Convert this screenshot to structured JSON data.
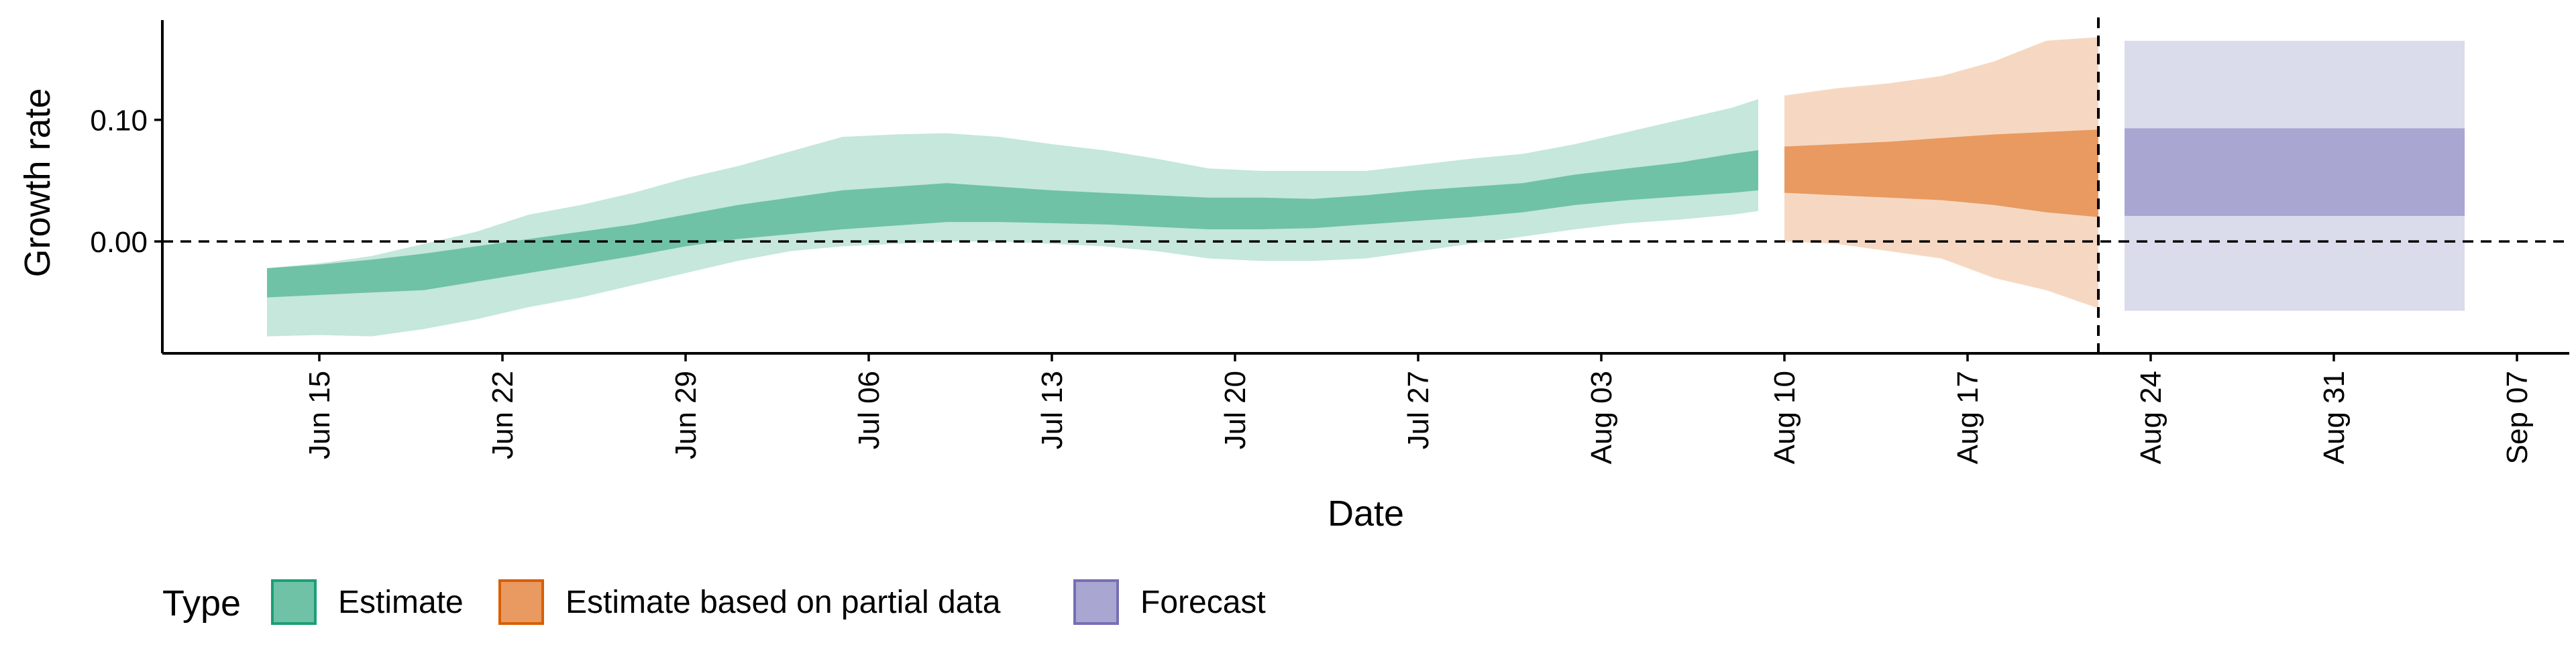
{
  "chart_data": {
    "type": "area",
    "xlabel": "Date",
    "ylabel": "Growth rate",
    "x_ticks": [
      "2020-06-15",
      "2020-06-22",
      "2020-06-29",
      "2020-07-06",
      "2020-07-13",
      "2020-07-20",
      "2020-07-27",
      "2020-08-03",
      "2020-08-10",
      "2020-08-17",
      "2020-08-24",
      "2020-08-31",
      "2020-09-07"
    ],
    "x_tick_labels": [
      "Jun 15",
      "Jun 22",
      "Jun 29",
      "Jul 06",
      "Jul 13",
      "Jul 20",
      "Jul 27",
      "Aug 03",
      "Aug 10",
      "Aug 17",
      "Aug 24",
      "Aug 31",
      "Sep 07"
    ],
    "y_ticks": [
      0.0,
      0.1
    ],
    "y_tick_labels": [
      "0.00",
      "0.10"
    ],
    "xlim": [
      "2020-06-09",
      "2020-09-09"
    ],
    "ylim": [
      -0.092,
      0.182
    ],
    "reference_lines": {
      "horizontal_y": 0.0,
      "vertical_x": "2020-08-22"
    },
    "legend": {
      "title": "Type",
      "position": "bottom",
      "items": [
        {
          "label": "Estimate",
          "fill": "#6fc2a5",
          "stroke": "#1b9e77"
        },
        {
          "label": "Estimate based on partial data",
          "fill": "#e89a60",
          "stroke": "#d95f02"
        },
        {
          "label": "Forecast",
          "fill": "#a9a6d2",
          "stroke": "#7570b3"
        }
      ]
    },
    "series": [
      {
        "name": "Estimate",
        "colors": {
          "outer": "#c5e7dc",
          "inner": "#6fc2a5"
        },
        "points": [
          {
            "x": "2020-06-13",
            "lo90": -0.078,
            "lo50": -0.046,
            "hi50": -0.022,
            "hi90": -0.022
          },
          {
            "x": "2020-06-15",
            "lo90": -0.077,
            "lo50": -0.044,
            "hi50": -0.019,
            "hi90": -0.018
          },
          {
            "x": "2020-06-17",
            "lo90": -0.078,
            "lo50": -0.042,
            "hi50": -0.015,
            "hi90": -0.012
          },
          {
            "x": "2020-06-19",
            "lo90": -0.072,
            "lo50": -0.04,
            "hi50": -0.01,
            "hi90": -0.002
          },
          {
            "x": "2020-06-21",
            "lo90": -0.064,
            "lo50": -0.033,
            "hi50": -0.004,
            "hi90": 0.008
          },
          {
            "x": "2020-06-23",
            "lo90": -0.054,
            "lo50": -0.026,
            "hi50": 0.002,
            "hi90": 0.022
          },
          {
            "x": "2020-06-25",
            "lo90": -0.046,
            "lo50": -0.019,
            "hi50": 0.008,
            "hi90": 0.03
          },
          {
            "x": "2020-06-27",
            "lo90": -0.036,
            "lo50": -0.012,
            "hi50": 0.014,
            "hi90": 0.04
          },
          {
            "x": "2020-06-29",
            "lo90": -0.026,
            "lo50": -0.004,
            "hi50": 0.022,
            "hi90": 0.052
          },
          {
            "x": "2020-07-01",
            "lo90": -0.016,
            "lo50": 0.002,
            "hi50": 0.03,
            "hi90": 0.062
          },
          {
            "x": "2020-07-03",
            "lo90": -0.008,
            "lo50": 0.006,
            "hi50": 0.036,
            "hi90": 0.074
          },
          {
            "x": "2020-07-05",
            "lo90": -0.004,
            "lo50": 0.01,
            "hi50": 0.042,
            "hi90": 0.086
          },
          {
            "x": "2020-07-07",
            "lo90": -0.002,
            "lo50": 0.013,
            "hi50": 0.045,
            "hi90": 0.088
          },
          {
            "x": "2020-07-09",
            "lo90": 0.0,
            "lo50": 0.016,
            "hi50": 0.048,
            "hi90": 0.089
          },
          {
            "x": "2020-07-11",
            "lo90": 0.0,
            "lo50": 0.016,
            "hi50": 0.045,
            "hi90": 0.086
          },
          {
            "x": "2020-07-13",
            "lo90": -0.002,
            "lo50": 0.015,
            "hi50": 0.042,
            "hi90": 0.08
          },
          {
            "x": "2020-07-15",
            "lo90": -0.004,
            "lo50": 0.014,
            "hi50": 0.04,
            "hi90": 0.075
          },
          {
            "x": "2020-07-17",
            "lo90": -0.008,
            "lo50": 0.012,
            "hi50": 0.038,
            "hi90": 0.068
          },
          {
            "x": "2020-07-19",
            "lo90": -0.014,
            "lo50": 0.01,
            "hi50": 0.036,
            "hi90": 0.06
          },
          {
            "x": "2020-07-21",
            "lo90": -0.016,
            "lo50": 0.01,
            "hi50": 0.036,
            "hi90": 0.058
          },
          {
            "x": "2020-07-23",
            "lo90": -0.016,
            "lo50": 0.011,
            "hi50": 0.035,
            "hi90": 0.058
          },
          {
            "x": "2020-07-25",
            "lo90": -0.014,
            "lo50": 0.014,
            "hi50": 0.038,
            "hi90": 0.058
          },
          {
            "x": "2020-07-27",
            "lo90": -0.008,
            "lo50": 0.017,
            "hi50": 0.042,
            "hi90": 0.063
          },
          {
            "x": "2020-07-29",
            "lo90": -0.002,
            "lo50": 0.02,
            "hi50": 0.045,
            "hi90": 0.068
          },
          {
            "x": "2020-07-31",
            "lo90": 0.004,
            "lo50": 0.024,
            "hi50": 0.048,
            "hi90": 0.072
          },
          {
            "x": "2020-08-02",
            "lo90": 0.01,
            "lo50": 0.03,
            "hi50": 0.055,
            "hi90": 0.08
          },
          {
            "x": "2020-08-04",
            "lo90": 0.015,
            "lo50": 0.034,
            "hi50": 0.06,
            "hi90": 0.09
          },
          {
            "x": "2020-08-06",
            "lo90": 0.018,
            "lo50": 0.037,
            "hi50": 0.065,
            "hi90": 0.1
          },
          {
            "x": "2020-08-08",
            "lo90": 0.022,
            "lo50": 0.04,
            "hi50": 0.072,
            "hi90": 0.11
          },
          {
            "x": "2020-08-09",
            "lo90": 0.025,
            "lo50": 0.042,
            "hi50": 0.075,
            "hi90": 0.117
          }
        ]
      },
      {
        "name": "Estimate based on partial data",
        "colors": {
          "outer": "#f6d8c2",
          "inner": "#e89a60"
        },
        "points": [
          {
            "x": "2020-08-10",
            "lo90": 0.0,
            "lo50": 0.04,
            "hi50": 0.078,
            "hi90": 0.12
          },
          {
            "x": "2020-08-12",
            "lo90": -0.002,
            "lo50": 0.038,
            "hi50": 0.08,
            "hi90": 0.126
          },
          {
            "x": "2020-08-14",
            "lo90": -0.008,
            "lo50": 0.036,
            "hi50": 0.082,
            "hi90": 0.13
          },
          {
            "x": "2020-08-16",
            "lo90": -0.014,
            "lo50": 0.034,
            "hi50": 0.085,
            "hi90": 0.136
          },
          {
            "x": "2020-08-18",
            "lo90": -0.03,
            "lo50": 0.03,
            "hi50": 0.088,
            "hi90": 0.148
          },
          {
            "x": "2020-08-20",
            "lo90": -0.04,
            "lo50": 0.024,
            "hi50": 0.09,
            "hi90": 0.165
          },
          {
            "x": "2020-08-22",
            "lo90": -0.055,
            "lo50": 0.02,
            "hi50": 0.092,
            "hi90": 0.168
          }
        ]
      },
      {
        "name": "Forecast",
        "colors": {
          "outer": "#dadbeb",
          "inner": "#a9a6d2"
        },
        "points": [
          {
            "x": "2020-08-23",
            "lo90": -0.057,
            "lo50": 0.021,
            "hi50": 0.093,
            "hi90": 0.165
          },
          {
            "x": "2020-09-05",
            "lo90": -0.057,
            "lo50": 0.021,
            "hi50": 0.093,
            "hi90": 0.165
          }
        ]
      }
    ]
  }
}
